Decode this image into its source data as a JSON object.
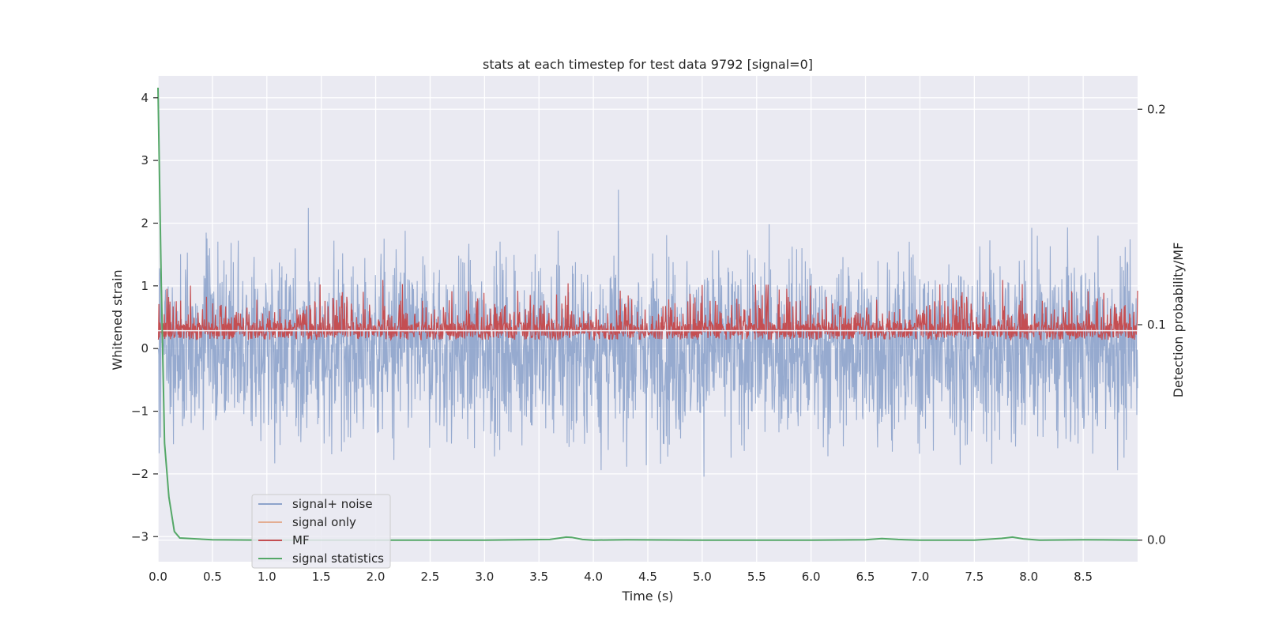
{
  "chart_data": {
    "type": "line",
    "title": "stats at each timestep for test data 9792 [signal=0]",
    "xlabel": "Time (s)",
    "ylabel": "Whitened strain",
    "y2label": "Detection probability/MF",
    "xlim": [
      0.0,
      9.0
    ],
    "ylim": [
      -3.4,
      4.35
    ],
    "y2lim": [
      -0.01,
      0.2155
    ],
    "x_ticks": [
      "0.0",
      "0.5",
      "1.0",
      "1.5",
      "2.0",
      "2.5",
      "3.0",
      "3.5",
      "4.0",
      "4.5",
      "5.0",
      "5.5",
      "6.0",
      "6.5",
      "7.0",
      "7.5",
      "8.0",
      "8.5"
    ],
    "y_ticks": [
      "4",
      "3",
      "2",
      "1",
      "0",
      "−1",
      "−2",
      "−3"
    ],
    "y2_ticks": [
      "0.2",
      "0.1",
      "0.0"
    ],
    "grid": true,
    "legend_position": "lower-left",
    "colors": {
      "plot_bg": "#eaeaf2",
      "noise": "#8da3cb",
      "signal": "#dd8452",
      "mf": "#c44e52",
      "stat": "#55a868",
      "grid": "#ffffff"
    },
    "series": [
      {
        "name": "signal+ noise",
        "axis": "left",
        "style": "noise",
        "note_range": [
          -3.15,
          4.0
        ]
      },
      {
        "name": "signal only",
        "axis": "left",
        "values": []
      },
      {
        "name": "MF",
        "axis": "right",
        "style": "noise",
        "range": [
          0.093,
          0.125
        ]
      },
      {
        "name": "signal statistics",
        "axis": "right",
        "x": [
          0.0,
          0.03,
          0.06,
          0.1,
          0.15,
          0.2,
          0.3,
          0.5,
          1.0,
          2.0,
          3.0,
          3.6,
          3.75,
          3.8,
          3.9,
          4.0,
          4.3,
          5.0,
          6.0,
          6.5,
          6.65,
          6.8,
          7.0,
          7.5,
          7.75,
          7.85,
          7.95,
          8.1,
          8.5,
          9.0
        ],
        "values": [
          0.21,
          0.12,
          0.045,
          0.02,
          0.004,
          0.001,
          0.0007,
          0.0002,
          0.0,
          0.0,
          0.0,
          0.0003,
          0.0014,
          0.0013,
          0.0003,
          0.0,
          0.0002,
          0.0,
          0.0,
          0.0002,
          0.0007,
          0.0003,
          0.0,
          0.0,
          0.0008,
          0.0014,
          0.0006,
          0.0,
          0.0002,
          0.0
        ]
      }
    ]
  }
}
